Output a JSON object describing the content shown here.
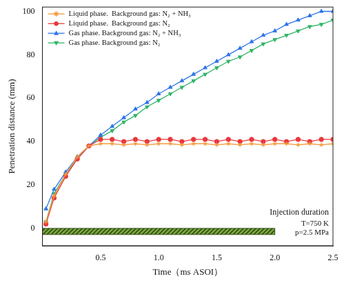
{
  "chart_data": {
    "type": "line",
    "x_label": "Time（ms ASOI）",
    "y_label": "Penetration distance (mm)",
    "x": [
      0.03,
      0.1,
      0.2,
      0.3,
      0.4,
      0.5,
      0.6,
      0.7,
      0.8,
      0.9,
      1.0,
      1.1,
      1.2,
      1.3,
      1.4,
      1.5,
      1.6,
      1.7,
      1.8,
      1.9,
      2.0,
      2.1,
      2.2,
      2.3,
      2.4,
      2.5
    ],
    "xlim": [
      0,
      2.5
    ],
    "xticks": [
      0.5,
      {
        "value": 1,
        "label": "1.0"
      },
      1.5,
      {
        "value": 2,
        "label": "2.0"
      },
      2.5
    ],
    "ylim": [
      -8,
      102
    ],
    "yticks": [
      0,
      20,
      40,
      60,
      80,
      100
    ],
    "grid": false,
    "legend": "upper left",
    "series": [
      {
        "name": "Liquid phase.  Background gas: N₂ + NH₃",
        "color": "#f39a3c",
        "marker": "star",
        "values": [
          3,
          15,
          25,
          33,
          38,
          39,
          39,
          38.5,
          39,
          38.5,
          39,
          39,
          38.5,
          39,
          39,
          38.5,
          39,
          38.5,
          39,
          38.5,
          39,
          39,
          38.5,
          39,
          38.5,
          39
        ]
      },
      {
        "name": "Liquid phase.  Background gas: N₂",
        "color": "#e8383d",
        "marker": "circle",
        "values": [
          2,
          14,
          24,
          32,
          38,
          41,
          41,
          40,
          41,
          40,
          41,
          41,
          40,
          41,
          41,
          40,
          41,
          40,
          41,
          40,
          41,
          40,
          41,
          40,
          41,
          41
        ]
      },
      {
        "name": "Gas phase. Background gas: N₂ + NH₃",
        "color": "#2e75e8",
        "marker": "triangle-up",
        "values": [
          9,
          18,
          26,
          33,
          38,
          43,
          47,
          51,
          55,
          58,
          62,
          65,
          68,
          71,
          74,
          77,
          80,
          83,
          86,
          89,
          91,
          94,
          96,
          98,
          100,
          100
        ]
      },
      {
        "name": "Gas phase. Background gas: N₂",
        "color": "#2fb566",
        "marker": "triangle-down",
        "values": [
          3,
          16,
          25,
          32,
          38,
          42,
          45,
          49,
          52,
          56,
          59,
          62,
          65,
          68,
          71,
          74,
          77,
          79,
          82,
          85,
          87,
          89,
          91,
          93,
          94,
          96
        ]
      }
    ],
    "injection": {
      "label": "Injection duration",
      "start": 0,
      "end": 2.0
    },
    "annotations": [
      "T=750 K",
      "p=2.5 MPa"
    ]
  }
}
